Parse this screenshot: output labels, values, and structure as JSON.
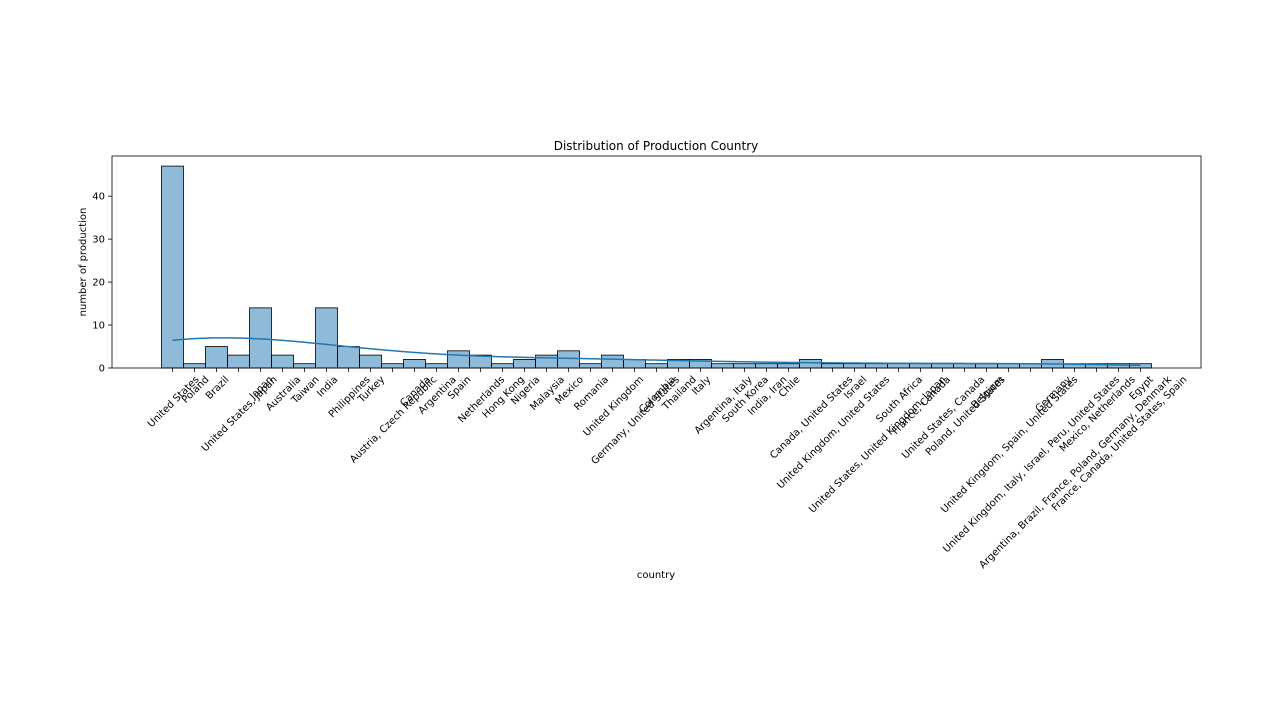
{
  "chart_data": {
    "type": "histogram",
    "title": "Distribution of Production Country",
    "x_label": "country",
    "y_label": "number of production",
    "categories": [
      "United States",
      "Poland",
      "Brazil",
      "United States, Japan",
      "Japan",
      "Australia",
      "Taiwan",
      "India",
      "Philippines",
      "Turkey",
      "Austria, Czech Republic",
      "Canada",
      "Argentina",
      "Spain",
      "Netherlands",
      "Hong Kong",
      "Nigeria",
      "Malaysia",
      "Mexico",
      "Romania",
      "United Kingdom",
      "Germany, United States",
      "Colombia",
      "Thailand",
      "Italy",
      "Argentina, Italy",
      "South Korea",
      "India, Iran",
      "Chile",
      "Canada, United States",
      "United Kingdom, United States",
      "Israel",
      "United States, United Kingdom, Japan",
      "South Africa",
      "France, Canada",
      "United States, Canada",
      "Poland, United States",
      "Belgium",
      "United Kingdom, Spain, United States",
      "United Kingdom, Italy, Israel, Peru, United States",
      "Germany",
      "Argentina, Brazil, France, Poland, Germany, Denmark",
      "Mexico, Netherlands",
      "France, Canada, United States, Spain",
      "Egypt"
    ],
    "values": [
      47,
      1,
      5,
      3,
      14,
      3,
      1,
      14,
      5,
      3,
      1,
      2,
      1,
      4,
      3,
      1,
      2,
      3,
      4,
      1,
      3,
      2,
      1,
      2,
      2,
      1,
      1,
      1,
      1,
      2,
      1,
      1,
      1,
      1,
      1,
      1,
      1,
      1,
      1,
      1,
      2,
      1,
      1,
      1,
      1
    ],
    "color": "#1f77b4",
    "kde": true,
    "ylim": [
      0,
      49.35
    ],
    "yticks": [
      0,
      10,
      20,
      30,
      40
    ]
  }
}
